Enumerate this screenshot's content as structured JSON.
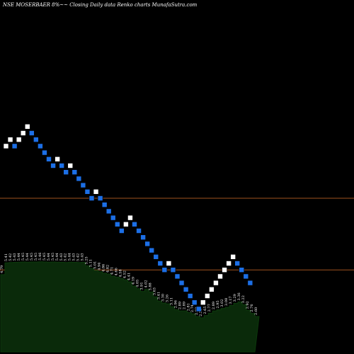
{
  "header": {
    "text": "NSE MOSERBAER 8%~~ Closing Daily data  Renko  charts MunafaSutra.com"
  },
  "colors": {
    "background": "#000000",
    "up_brick": "#ffffff",
    "down_brick": "#1c6fe6",
    "level_line": "#a0521e",
    "volume_fill": "#0a2a0a",
    "volume_edge": "#0c3a0c",
    "text": "#ffffff"
  },
  "chart_data": [
    {
      "type": "renko",
      "title": "NSE MOSERBAER 8%~~ Closing Daily data  Renko  charts MunafaSutra.com",
      "xlabel": "",
      "ylabel": "",
      "brick_percent": 8,
      "grid": false,
      "horizontal_levels": [
        5.0,
        3.9
      ],
      "bricks": [
        {
          "level": 5.8,
          "dir": "up"
        },
        {
          "level": 5.9,
          "dir": "up"
        },
        {
          "level": 5.8,
          "dir": "down"
        },
        {
          "level": 5.9,
          "dir": "up"
        },
        {
          "level": 6.0,
          "dir": "up"
        },
        {
          "level": 6.1,
          "dir": "up"
        },
        {
          "level": 6.0,
          "dir": "down"
        },
        {
          "level": 5.9,
          "dir": "down"
        },
        {
          "level": 5.8,
          "dir": "down"
        },
        {
          "level": 5.7,
          "dir": "down"
        },
        {
          "level": 5.6,
          "dir": "down"
        },
        {
          "level": 5.5,
          "dir": "down"
        },
        {
          "level": 5.6,
          "dir": "up"
        },
        {
          "level": 5.5,
          "dir": "down"
        },
        {
          "level": 5.4,
          "dir": "down"
        },
        {
          "level": 5.5,
          "dir": "up"
        },
        {
          "level": 5.4,
          "dir": "down"
        },
        {
          "level": 5.3,
          "dir": "down"
        },
        {
          "level": 5.2,
          "dir": "down"
        },
        {
          "level": 5.1,
          "dir": "down"
        },
        {
          "level": 5.0,
          "dir": "down"
        },
        {
          "level": 5.1,
          "dir": "up"
        },
        {
          "level": 5.0,
          "dir": "down"
        },
        {
          "level": 4.9,
          "dir": "down"
        },
        {
          "level": 4.8,
          "dir": "down"
        },
        {
          "level": 4.7,
          "dir": "down"
        },
        {
          "level": 4.6,
          "dir": "down"
        },
        {
          "level": 4.5,
          "dir": "down"
        },
        {
          "level": 4.6,
          "dir": "up"
        },
        {
          "level": 4.7,
          "dir": "up"
        },
        {
          "level": 4.6,
          "dir": "down"
        },
        {
          "level": 4.5,
          "dir": "down"
        },
        {
          "level": 4.4,
          "dir": "down"
        },
        {
          "level": 4.3,
          "dir": "down"
        },
        {
          "level": 4.2,
          "dir": "down"
        },
        {
          "level": 4.1,
          "dir": "down"
        },
        {
          "level": 4.0,
          "dir": "down"
        },
        {
          "level": 3.9,
          "dir": "down"
        },
        {
          "level": 4.0,
          "dir": "up"
        },
        {
          "level": 3.9,
          "dir": "down"
        },
        {
          "level": 3.8,
          "dir": "down"
        },
        {
          "level": 3.7,
          "dir": "down"
        },
        {
          "level": 3.6,
          "dir": "down"
        },
        {
          "level": 3.5,
          "dir": "down"
        },
        {
          "level": 3.4,
          "dir": "down"
        },
        {
          "level": 3.3,
          "dir": "down"
        },
        {
          "level": 3.4,
          "dir": "up"
        },
        {
          "level": 3.5,
          "dir": "up"
        },
        {
          "level": 3.6,
          "dir": "up"
        },
        {
          "level": 3.7,
          "dir": "up"
        },
        {
          "level": 3.8,
          "dir": "up"
        },
        {
          "level": 3.9,
          "dir": "up"
        },
        {
          "level": 4.0,
          "dir": "up"
        },
        {
          "level": 4.1,
          "dir": "up"
        },
        {
          "level": 4.0,
          "dir": "down"
        },
        {
          "level": 3.9,
          "dir": "down"
        },
        {
          "level": 3.8,
          "dir": "down"
        },
        {
          "level": 3.7,
          "dir": "down"
        }
      ],
      "volume_labels": [
        "4.79",
        "5.41",
        "5.42",
        "5.43",
        "5.44",
        "5.45",
        "5.44",
        "5.45",
        "5.45",
        "5.46",
        "5.45",
        "5.44",
        "5.45",
        "5.44",
        "5.43",
        "5.42",
        "5.44",
        "5.43",
        "5.42",
        "5.43",
        "5.25",
        "5.11",
        "5.01",
        "4.94",
        "4.86",
        "4.82",
        "4.71",
        "4.66",
        "4.58",
        "4.52",
        "4.41",
        "4.19",
        "4.05",
        "3.91",
        "4.02",
        "3.88",
        "3.63",
        "3.41",
        "3.30",
        "3.26",
        "3.11",
        "2.96",
        "2.89",
        "2.89",
        "2.81",
        "2.74",
        "2.60",
        "2.53",
        "2.65",
        "2.77",
        "2.89",
        "2.95",
        "3.02",
        "3.08",
        "3.17",
        "3.29",
        "3.36",
        "3.22",
        "2.92",
        "2.76",
        "2.60"
      ]
    }
  ]
}
